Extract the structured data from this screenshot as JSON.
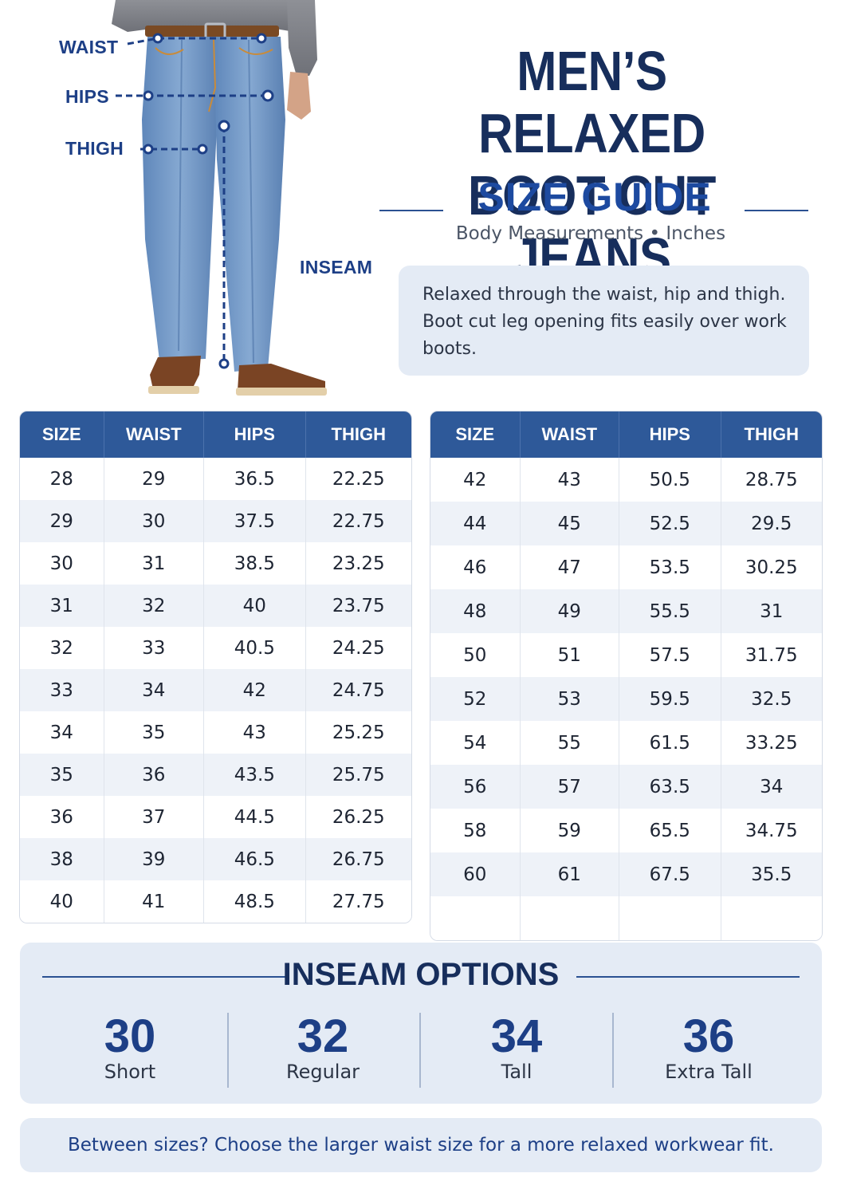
{
  "measure_labels": {
    "waist": "WAIST",
    "hips": "HIPS",
    "thigh": "THIGH",
    "inseam": "INSEAM"
  },
  "title": {
    "line1": "MEN’S RELAXED",
    "line2": "BOOT CUT JEANS"
  },
  "subtitle": "SIZE GUIDE",
  "units": "Body Measurements • Inches",
  "description": "Relaxed through the waist, hip and thigh. Boot cut leg opening fits easily over work boots.",
  "table": {
    "headers": [
      "SIZE",
      "WAIST",
      "HIPS",
      "THIGH"
    ],
    "left_rows": [
      [
        "28",
        "29",
        "36.5",
        "22.25"
      ],
      [
        "29",
        "30",
        "37.5",
        "22.75"
      ],
      [
        "30",
        "31",
        "38.5",
        "23.25"
      ],
      [
        "31",
        "32",
        "40",
        "23.75"
      ],
      [
        "32",
        "33",
        "40.5",
        "24.25"
      ],
      [
        "33",
        "34",
        "42",
        "24.75"
      ],
      [
        "34",
        "35",
        "43",
        "25.25"
      ],
      [
        "35",
        "36",
        "43.5",
        "25.75"
      ],
      [
        "36",
        "37",
        "44.5",
        "26.25"
      ],
      [
        "38",
        "39",
        "46.5",
        "26.75"
      ],
      [
        "40",
        "41",
        "48.5",
        "27.75"
      ]
    ],
    "right_rows": [
      [
        "42",
        "43",
        "50.5",
        "28.75"
      ],
      [
        "44",
        "45",
        "52.5",
        "29.5"
      ],
      [
        "46",
        "47",
        "53.5",
        "30.25"
      ],
      [
        "48",
        "49",
        "55.5",
        "31"
      ],
      [
        "50",
        "51",
        "57.5",
        "31.75"
      ],
      [
        "52",
        "53",
        "59.5",
        "32.5"
      ],
      [
        "54",
        "55",
        "61.5",
        "33.25"
      ],
      [
        "56",
        "57",
        "63.5",
        "34"
      ],
      [
        "58",
        "59",
        "65.5",
        "34.75"
      ],
      [
        "60",
        "61",
        "67.5",
        "35.5"
      ],
      [
        "",
        "",
        "",
        ""
      ]
    ]
  },
  "inseam": {
    "title": "INSEAM OPTIONS",
    "options": [
      {
        "length": "30",
        "label": "Short"
      },
      {
        "length": "32",
        "label": "Regular"
      },
      {
        "length": "34",
        "label": "Tall"
      },
      {
        "length": "36",
        "label": "Extra Tall"
      }
    ]
  },
  "footer": "Between sizes? Choose the larger waist size for a more relaxed workwear fit.",
  "colors": {
    "navy": "#172e5c",
    "accent": "#1d4aa0",
    "header_bg": "#2e5999",
    "panel_bg": "#e4ebf5",
    "denim": "#6d94c4"
  }
}
